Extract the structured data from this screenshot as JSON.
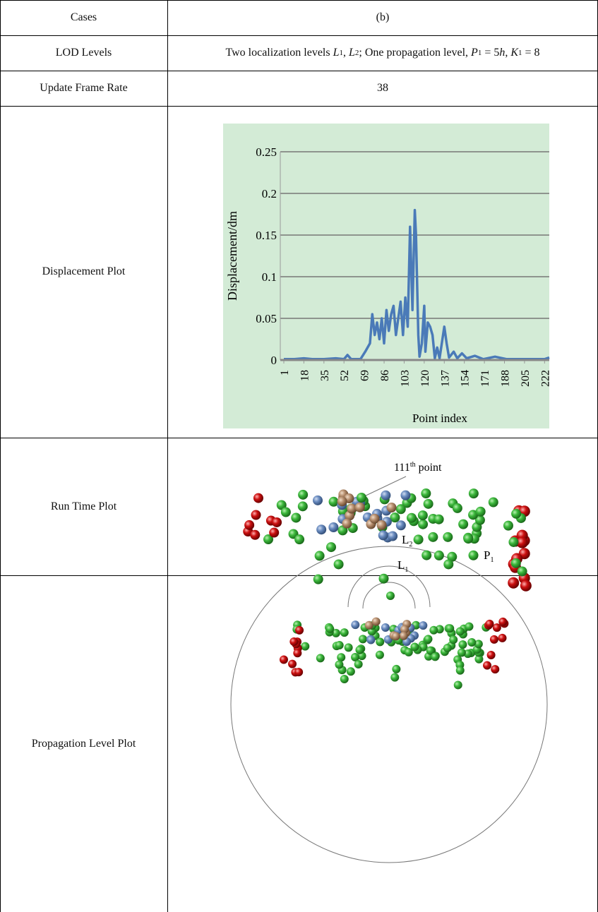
{
  "table": {
    "rows": [
      {
        "label": "Cases",
        "value": "(b)"
      },
      {
        "label": "LOD Levels",
        "value": [
          "Two localization levels ",
          "L",
          "1",
          ", ",
          "L",
          "2",
          "; One propagation level, ",
          "P",
          "1",
          " = 5",
          "h",
          ", ",
          "K",
          "1",
          " = 8"
        ]
      },
      {
        "label": "Update Frame Rate",
        "value": "38"
      },
      {
        "label": "Displacement Plot"
      },
      {
        "label": "Run Time Plot"
      },
      {
        "label": "Propagation Level Plot"
      }
    ]
  },
  "displacement_plot": {
    "type": "line",
    "y_label": "Displacement/dm",
    "x_label": "Point index",
    "color": "#4a7ab8",
    "x": [
      1,
      10,
      18,
      25,
      35,
      45,
      52,
      55,
      58,
      66,
      70,
      74,
      76,
      78,
      80,
      82,
      84,
      86,
      88,
      90,
      92,
      94,
      96,
      98,
      100,
      102,
      104,
      106,
      108,
      110,
      112,
      113,
      115,
      116,
      118,
      120,
      121,
      123,
      125,
      127,
      129,
      131,
      133,
      137,
      139,
      141,
      145,
      148,
      152,
      156,
      163,
      170,
      180,
      190,
      205,
      222,
      226
    ],
    "values": [
      0.001,
      0.001,
      0.002,
      0.001,
      0.001,
      0.002,
      0.001,
      0.006,
      0.001,
      0.001,
      0.01,
      0.02,
      0.055,
      0.03,
      0.045,
      0.025,
      0.05,
      0.02,
      0.06,
      0.035,
      0.055,
      0.065,
      0.03,
      0.05,
      0.07,
      0.03,
      0.075,
      0.04,
      0.16,
      0.06,
      0.18,
      0.15,
      0.03,
      0.004,
      0.02,
      0.065,
      0.01,
      0.045,
      0.04,
      0.03,
      0.002,
      0.015,
      0.002,
      0.04,
      0.02,
      0.003,
      0.01,
      0.002,
      0.008,
      0.002,
      0.005,
      0.001,
      0.004,
      0.001,
      0.001,
      0.001,
      0.003
    ],
    "xlim": [
      1,
      226
    ],
    "ylim": [
      0,
      0.25
    ],
    "yticks": [
      0,
      0.05,
      0.1,
      0.15,
      0.2,
      0.25
    ],
    "xticks": [
      1,
      18,
      35,
      52,
      69,
      86,
      103,
      120,
      137,
      154,
      171,
      188,
      205,
      222
    ],
    "grid": true
  },
  "run_time_plot": {
    "annotation": {
      "number": "111",
      "suffix": "th",
      "text": " point"
    }
  },
  "propagation_plot": {
    "labels": [
      {
        "letter": "P",
        "sub": "1"
      },
      {
        "letter": "L",
        "sub": "2"
      },
      {
        "letter": "L",
        "sub": "1"
      }
    ]
  }
}
